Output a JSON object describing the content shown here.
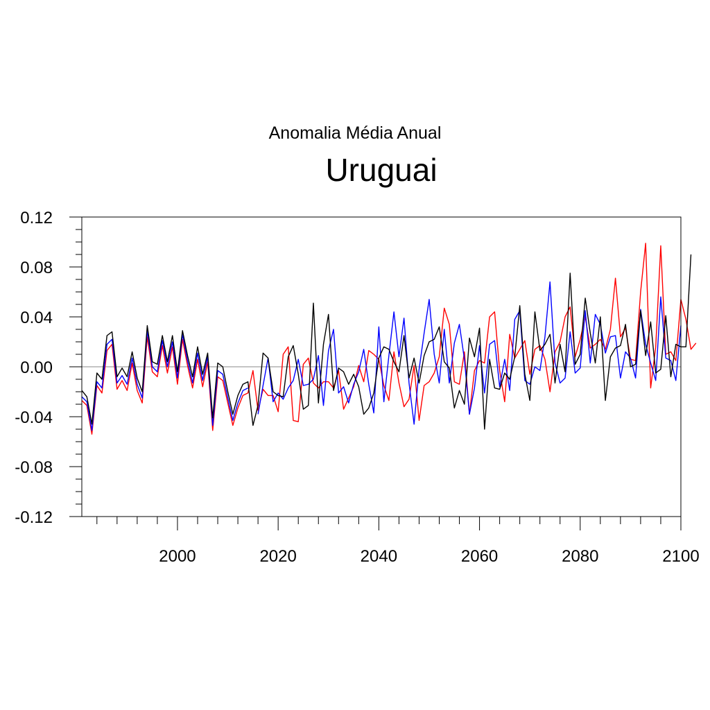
{
  "chart_data": {
    "type": "line",
    "subtitle": "Anomalia Média Anual",
    "title": "Uruguai",
    "xlabel": "",
    "ylabel": "",
    "xlim": [
      1981,
      2100
    ],
    "ylim": [
      -0.12,
      0.12
    ],
    "x_ticks": [
      2000,
      2020,
      2040,
      2060,
      2080,
      2100
    ],
    "x_tick_labels": [
      "2000",
      "2020",
      "2040",
      "2060",
      "2080",
      "2100"
    ],
    "y_ticks": [
      0.12,
      0.08,
      0.04,
      0.0,
      -0.04,
      -0.08,
      -0.12
    ],
    "y_tick_labels": [
      "0.12",
      "0.08",
      "0.04",
      "0.00",
      "-0.04",
      "-0.08",
      "-0.12"
    ],
    "zero_line": true,
    "grid": false,
    "legend": "none",
    "series": [
      {
        "color": "#ff0000",
        "segments": [
          {
            "x_start": 1981,
            "values": [
              -0.027,
              -0.031,
              -0.054,
              -0.015,
              -0.021,
              0.013,
              0.018,
              -0.018,
              -0.011,
              -0.019,
              0.003,
              -0.019,
              -0.029,
              0.024,
              -0.004,
              -0.008,
              0.017,
              -0.005,
              0.016,
              -0.014,
              0.022,
              0.001,
              -0.017,
              0.006,
              -0.016,
              0.004,
              -0.051,
              -0.008,
              -0.011,
              -0.029,
              -0.047,
              -0.033,
              -0.023,
              -0.021,
              -0.003,
              -0.035,
              -0.018,
              -0.023,
              -0.023,
              -0.036,
              0.01,
              0.016,
              -0.043,
              -0.044,
              0.002,
              0.007,
              -0.013,
              -0.017,
              -0.012,
              -0.012,
              -0.017,
              -0.003,
              -0.034,
              -0.025,
              -0.016,
              0.001,
              -0.012,
              0.013,
              0.01,
              0.006,
              -0.015,
              -0.027,
              0.012,
              -0.013,
              -0.032,
              -0.026,
              0.001,
              -0.043,
              -0.015,
              -0.012,
              -0.005,
              0.008,
              0.047,
              0.034,
              -0.012,
              -0.014,
              0.012,
              -0.038,
              -0.003,
              0.005,
              0.003,
              0.04,
              0.044,
              -0.003,
              -0.028,
              0.026,
              0.007,
              0.014,
              0.021,
              -0.006,
              0.014,
              0.017,
              0.006,
              -0.02,
              0.012,
              0.02,
              0.04,
              0.048,
              0.008,
              0.022,
              0.04,
              0.015,
              0.018,
              0.022,
              0.014,
              0.03,
              0.071,
              0.024,
              0.031,
              0.006,
              0.005,
              0.06,
              0.099,
              -0.017,
              0.016,
              0.097,
              0.01,
              0.012,
              0.005,
              0.054,
              0.038,
              0.014,
              0.019
            ]
          }
        ]
      },
      {
        "color": "#0000ff",
        "segments": [
          {
            "x_start": 1981,
            "values": [
              -0.024,
              -0.028,
              -0.051,
              -0.012,
              -0.017,
              0.018,
              0.022,
              -0.013,
              -0.007,
              -0.014,
              0.007,
              -0.014,
              -0.025,
              0.029,
              0.0,
              -0.004,
              0.021,
              0.0,
              0.02,
              -0.009,
              0.026,
              0.005,
              -0.013,
              0.011,
              -0.011,
              0.008,
              -0.047,
              -0.003,
              -0.006,
              -0.025,
              -0.043,
              -0.029,
              -0.019,
              -0.017
            ]
          },
          {
            "x_start": 2016,
            "values": [
              -0.038,
              -0.015,
              0.007,
              -0.028,
              -0.021,
              -0.026,
              -0.017,
              -0.011,
              0.006,
              -0.015,
              -0.014,
              -0.01,
              0.009,
              -0.031,
              0.013,
              0.03,
              -0.021,
              -0.016,
              -0.029,
              -0.014,
              -0.004,
              0.014,
              -0.014,
              -0.037,
              0.032,
              -0.028,
              0.009,
              0.044,
              0.008,
              0.039,
              -0.013,
              -0.046,
              -0.002,
              0.027,
              0.054,
              0.01,
              -0.013,
              0.03,
              -0.013,
              0.019,
              0.034,
              0.006,
              -0.038,
              -0.017,
              0.017,
              -0.021,
              0.018,
              0.021,
              -0.016,
              0.006,
              -0.019,
              0.038,
              0.045,
              -0.011,
              -0.014,
              0.0,
              -0.003,
              0.024,
              0.068,
              0.003,
              -0.013,
              -0.009,
              0.028,
              -0.005,
              -0.001,
              0.045,
              0.003,
              0.042,
              0.034,
              0.011,
              0.024,
              0.025,
              -0.009,
              0.012,
              0.007,
              -0.009,
              0.046,
              0.018,
              0.003,
              -0.011,
              0.056,
              0.007,
              0.005,
              -0.011,
              0.033
            ]
          }
        ]
      },
      {
        "color": "#000000",
        "segments": [
          {
            "x_start": 1981,
            "values": [
              -0.019,
              -0.024,
              -0.046,
              -0.005,
              -0.01,
              0.025,
              0.028,
              -0.008,
              -0.001,
              -0.008,
              0.012,
              -0.009,
              -0.02,
              0.033,
              0.004,
              0.002,
              0.025,
              0.004,
              0.025,
              -0.004,
              0.029,
              0.009,
              -0.008,
              0.016,
              -0.006,
              0.011,
              -0.041,
              0.003,
              0.0,
              -0.02,
              -0.038,
              -0.023,
              -0.014,
              -0.012,
              -0.047,
              -0.031,
              0.011,
              0.007,
              -0.02,
              -0.023,
              -0.024,
              0.008,
              0.017,
              -0.006,
              -0.034,
              -0.031,
              0.051,
              -0.029,
              0.018,
              0.042,
              -0.019,
              -0.001,
              -0.004,
              -0.014,
              -0.006,
              -0.016,
              -0.038,
              -0.033,
              -0.021,
              0.007,
              0.016,
              0.014,
              0.004,
              -0.004,
              0.025,
              -0.009,
              0.007,
              -0.013,
              0.009,
              0.02,
              0.022,
              0.032,
              0.004,
              -0.001,
              -0.033,
              -0.019,
              -0.03,
              0.023,
              0.008,
              0.031,
              -0.05,
              0.006,
              -0.017,
              -0.018,
              -0.005,
              -0.01,
              0.008,
              0.049,
              -0.006,
              -0.027,
              0.044,
              0.013,
              0.018,
              0.026,
              -0.013,
              0.018,
              -0.004,
              0.075,
              0.002,
              0.01,
              0.055,
              0.027,
              0.003,
              0.04,
              -0.027,
              0.008,
              0.015,
              0.017,
              0.034,
              0.0,
              0.002,
              0.045,
              0.009,
              0.036,
              -0.005,
              -0.002,
              0.041,
              -0.008,
              0.018,
              0.016,
              0.016,
              0.09
            ]
          }
        ]
      }
    ]
  }
}
